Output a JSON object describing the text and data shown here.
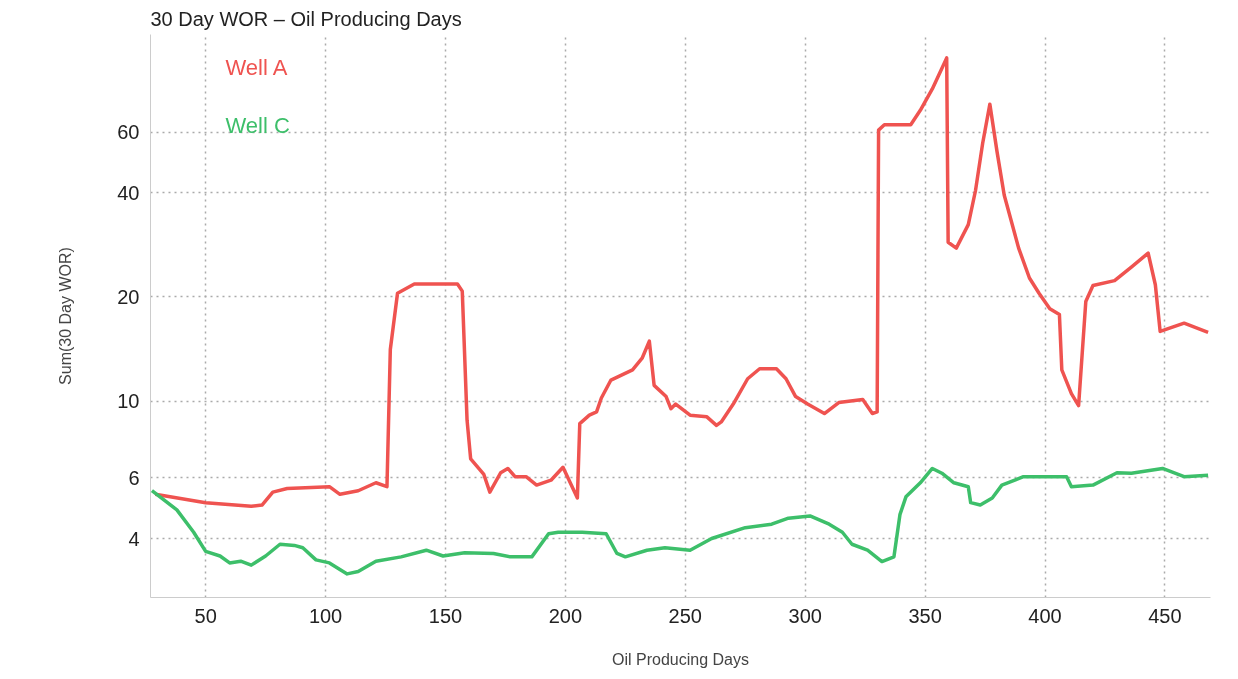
{
  "chart_data": {
    "type": "line",
    "title": "30 Day WOR – Oil Producing Days",
    "xlabel": "Oil Producing Days",
    "ylabel": "Sum(30 Day WOR)",
    "log": "y",
    "grid": true,
    "legend": "top left",
    "line_style": "solid",
    "marker": "none",
    "xlim": [
      27,
      469
    ],
    "xticks": [
      50,
      100,
      150,
      200,
      250,
      300,
      350,
      400,
      450
    ],
    "ylim": [
      2.7,
      115
    ],
    "yticks": [
      4,
      6,
      10,
      20,
      40,
      60
    ],
    "series": [
      {
        "name": "Well A",
        "color": "#ef5350",
        "x": [
          29,
          50,
          69,
          73.5,
          78,
          84,
          101.6,
          106,
          113.6,
          121,
          125.6,
          127,
          130,
          137,
          155,
          157,
          159,
          160.5,
          166,
          168.5,
          173,
          176,
          179,
          183.6,
          188,
          194,
          199,
          205,
          206,
          210,
          213,
          215,
          219,
          228,
          232,
          235,
          237,
          242,
          244,
          246,
          252,
          259,
          263,
          265,
          270,
          276,
          281,
          288,
          292,
          296,
          301,
          308,
          314,
          324,
          328,
          330,
          330.6,
          333,
          344,
          348,
          353,
          359,
          359.6,
          363,
          368,
          371,
          374,
          377,
          380,
          383,
          389,
          393.5,
          397.5,
          402,
          406,
          407,
          411,
          414,
          417,
          420,
          429,
          436,
          443,
          446,
          448,
          458,
          468
        ],
        "values": [
          5.37,
          5.08,
          4.96,
          5.0,
          5.45,
          5.58,
          5.65,
          5.37,
          5.5,
          5.8,
          5.65,
          14.1,
          20.5,
          21.8,
          21.8,
          20.8,
          8.8,
          6.8,
          6.13,
          5.45,
          6.2,
          6.38,
          6.04,
          6.04,
          5.71,
          5.9,
          6.43,
          5.24,
          8.6,
          9.1,
          9.3,
          10.2,
          11.5,
          12.3,
          13.3,
          14.9,
          11.1,
          10.3,
          9.5,
          9.8,
          9.1,
          9.0,
          8.5,
          8.7,
          9.8,
          11.6,
          12.4,
          12.4,
          11.6,
          10.3,
          9.8,
          9.2,
          9.9,
          10.1,
          9.2,
          9.3,
          60.8,
          63,
          63,
          69.4,
          80,
          98.4,
          28.8,
          27.7,
          32.4,
          40.6,
          55.7,
          72.3,
          52.6,
          39.4,
          27.7,
          22.7,
          20.5,
          18.5,
          17.8,
          12.3,
          10.5,
          9.7,
          19.4,
          21.6,
          22.3,
          24.4,
          26.8,
          21.7,
          15.9,
          16.8,
          15.8
        ]
      },
      {
        "name": "Well C",
        "color": "#3dbf6a",
        "x": [
          27.6,
          38,
          45,
          50,
          56,
          60,
          64.6,
          69,
          75,
          81,
          87,
          90.5,
          96,
          101.6,
          109,
          113.6,
          121,
          131.5,
          142,
          149,
          158,
          170,
          177,
          186,
          193,
          197,
          207,
          217,
          221.5,
          225,
          234,
          241.5,
          252,
          261,
          275,
          286,
          293,
          302,
          310,
          315.5,
          319.5,
          326,
          332,
          337,
          339.5,
          342,
          348,
          353,
          357,
          362,
          368,
          369,
          373,
          378,
          382,
          391,
          409,
          411,
          420,
          430,
          436,
          449,
          458,
          468
        ],
        "values": [
          5.5,
          4.84,
          4.17,
          3.67,
          3.56,
          3.4,
          3.44,
          3.35,
          3.56,
          3.85,
          3.82,
          3.76,
          3.47,
          3.4,
          3.16,
          3.21,
          3.44,
          3.54,
          3.7,
          3.56,
          3.64,
          3.62,
          3.54,
          3.54,
          4.13,
          4.17,
          4.17,
          4.13,
          3.62,
          3.54,
          3.7,
          3.76,
          3.7,
          4.0,
          4.3,
          4.4,
          4.58,
          4.65,
          4.4,
          4.17,
          3.85,
          3.7,
          3.43,
          3.54,
          4.69,
          5.28,
          5.8,
          6.38,
          6.18,
          5.8,
          5.65,
          5.08,
          5.0,
          5.24,
          5.71,
          6.04,
          6.04,
          5.65,
          5.71,
          6.2,
          6.18,
          6.38,
          6.04,
          6.1
        ]
      }
    ]
  }
}
